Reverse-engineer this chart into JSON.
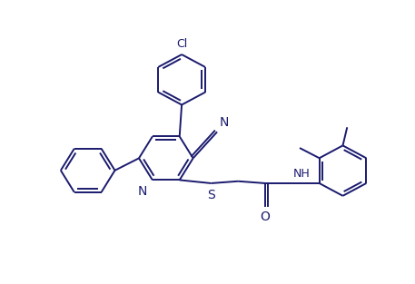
{
  "background_color": "#ffffff",
  "line_color": "#1a1a6e",
  "line_width": 1.4,
  "font_size": 9,
  "figsize": [
    4.57,
    3.13
  ],
  "dpi": 100,
  "xlim": [
    0,
    9.5
  ],
  "ylim": [
    0,
    7
  ]
}
